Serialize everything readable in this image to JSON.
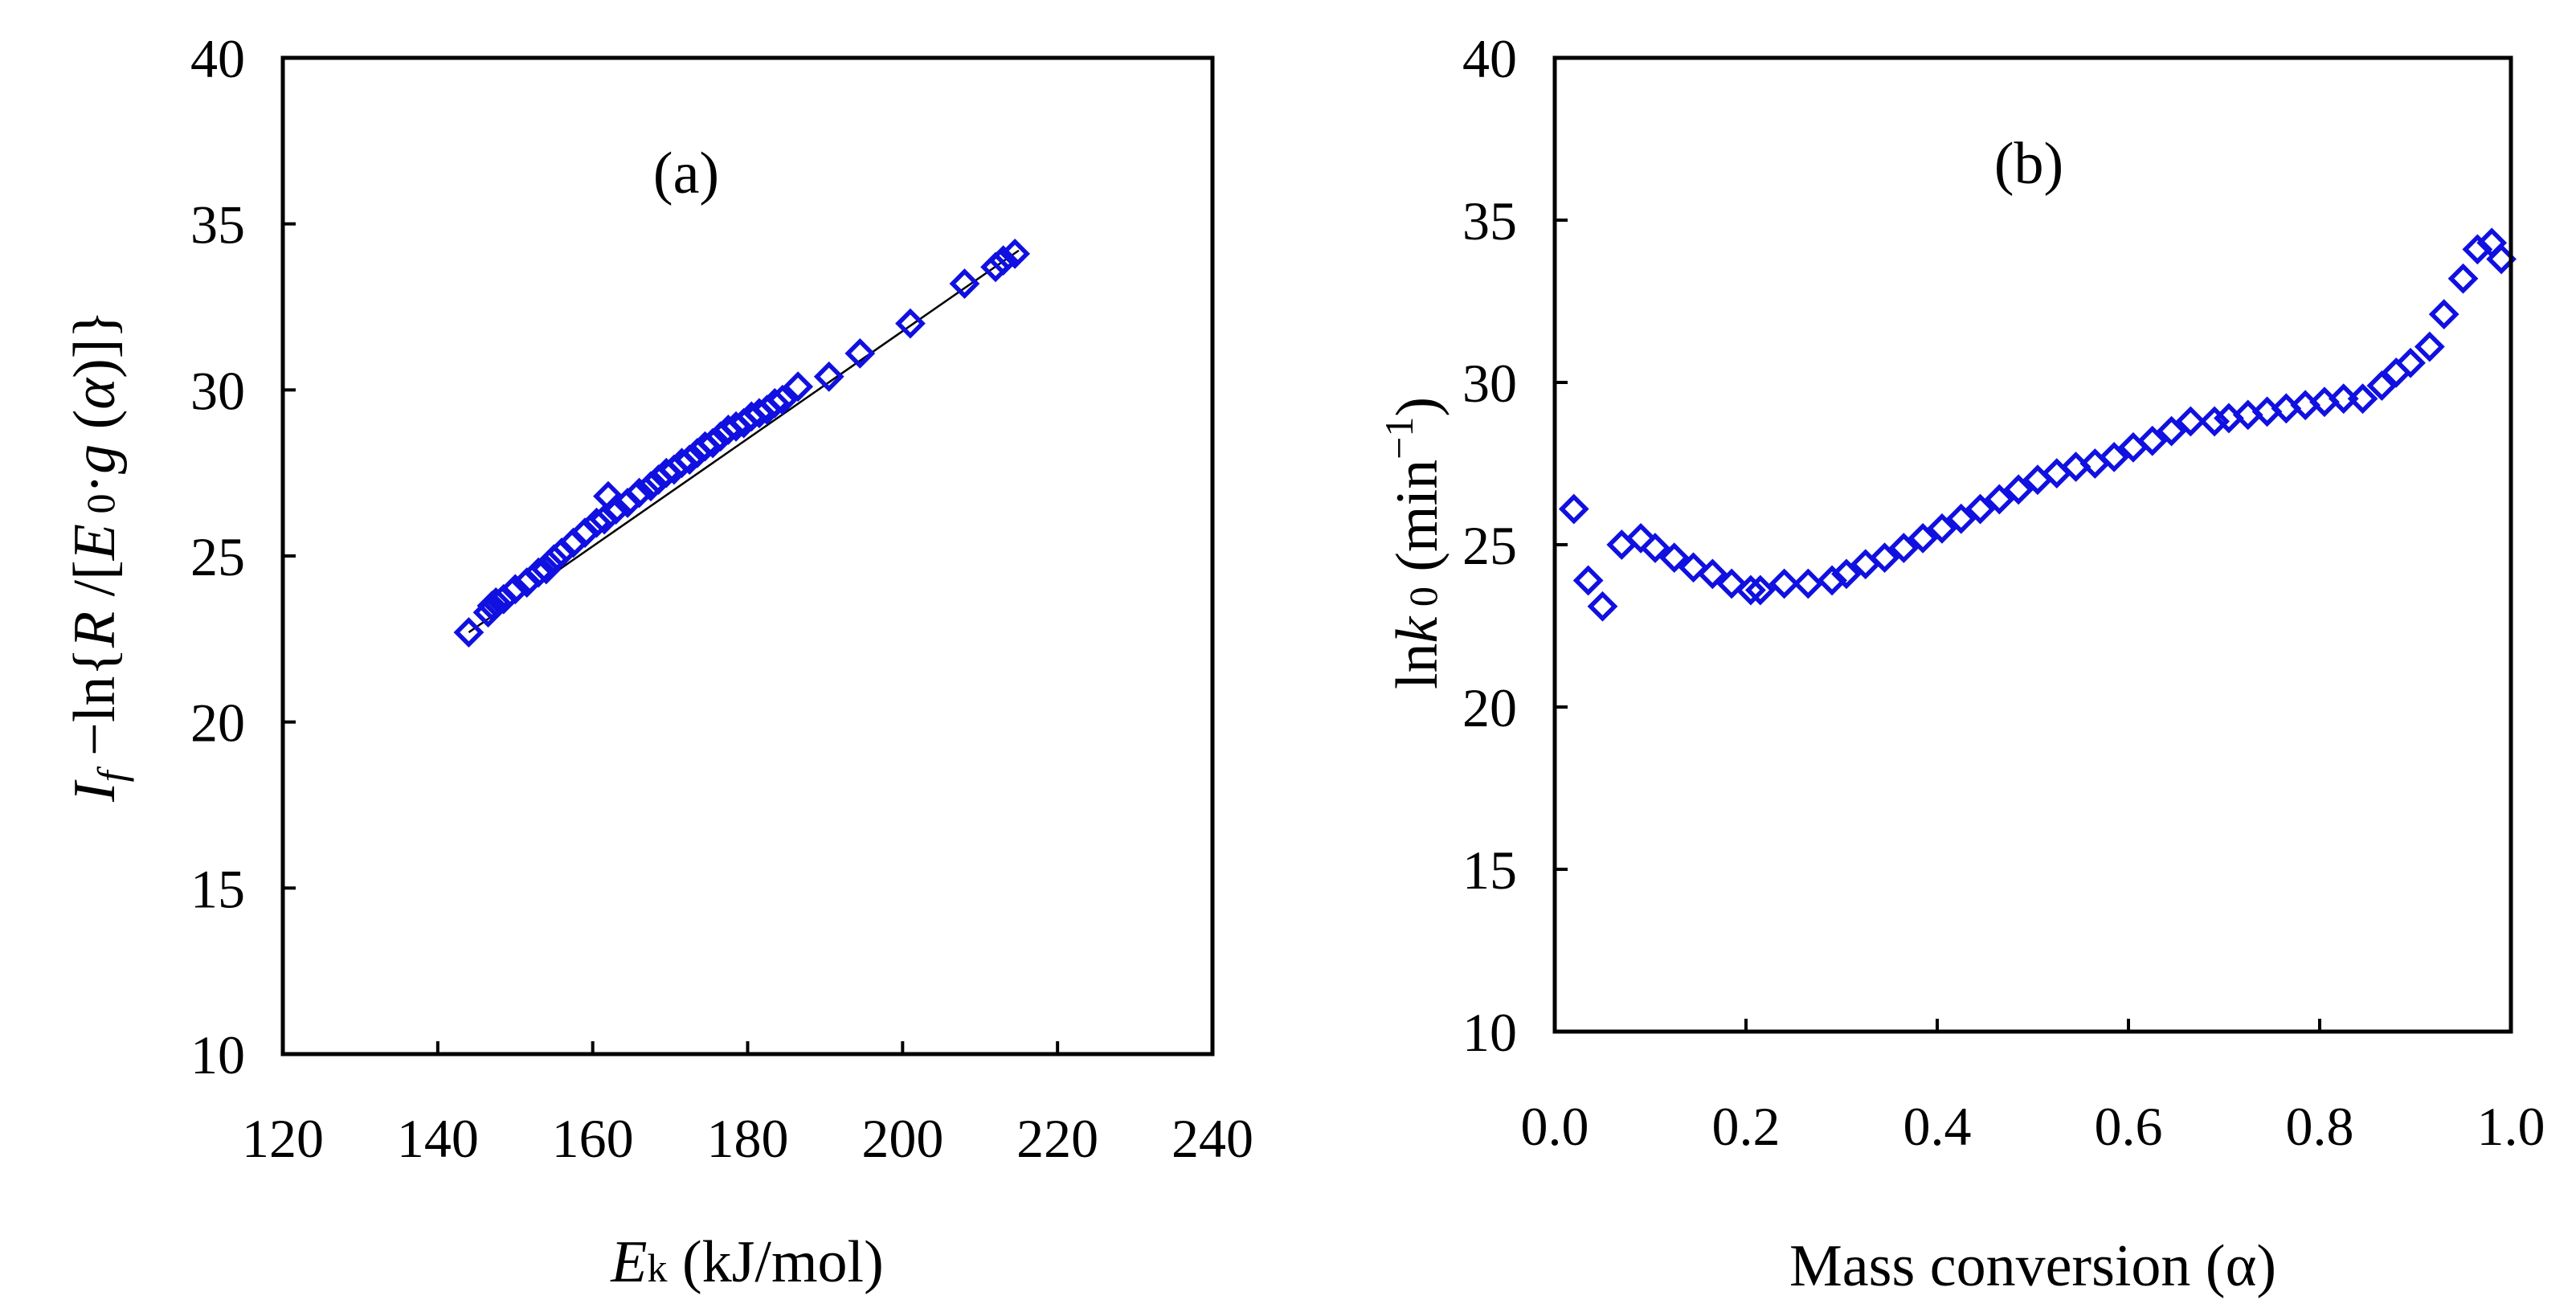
{
  "chart_data": [
    {
      "type": "scatter",
      "panel_label": "(a)",
      "xlim": [
        120,
        240
      ],
      "ylim": [
        10,
        40
      ],
      "x_ticks": [
        "120",
        "140",
        "160",
        "180",
        "200",
        "220",
        "240"
      ],
      "y_ticks": [
        "10",
        "15",
        "20",
        "25",
        "30",
        "35",
        "40"
      ],
      "xlabel": {
        "var": "E",
        "sub": "k",
        "unit": " (kJ/mol)"
      },
      "ylabel": {
        "p1": "I",
        "p1_sub": "f",
        "p2": " −ln{",
        "p3": "R",
        "p4": " /[",
        "p5": "E",
        "p5_sub": " 0",
        "p6": "·",
        "p7": "g",
        "p8": " (",
        "p9": "α",
        "p10": ")]}"
      },
      "marker": "open-diamond",
      "marker_color": "#1010e0",
      "fit_line": {
        "x": [
          144,
          215
        ],
        "y": [
          22.7,
          34.2
        ]
      },
      "points": [
        {
          "x": 144,
          "y": 22.7
        },
        {
          "x": 146.5,
          "y": 23.3
        },
        {
          "x": 147,
          "y": 23.5
        },
        {
          "x": 147.5,
          "y": 23.6
        },
        {
          "x": 148.5,
          "y": 23.7
        },
        {
          "x": 150,
          "y": 24.0
        },
        {
          "x": 151.5,
          "y": 24.2
        },
        {
          "x": 153,
          "y": 24.5
        },
        {
          "x": 154,
          "y": 24.6
        },
        {
          "x": 155,
          "y": 24.9
        },
        {
          "x": 156,
          "y": 25.1
        },
        {
          "x": 157.5,
          "y": 25.4
        },
        {
          "x": 159,
          "y": 25.7
        },
        {
          "x": 160.5,
          "y": 26.0
        },
        {
          "x": 161.5,
          "y": 26.1
        },
        {
          "x": 162,
          "y": 26.8
        },
        {
          "x": 163,
          "y": 26.4
        },
        {
          "x": 164.5,
          "y": 26.6
        },
        {
          "x": 166,
          "y": 26.9
        },
        {
          "x": 167.5,
          "y": 27.1
        },
        {
          "x": 168.5,
          "y": 27.3
        },
        {
          "x": 169.5,
          "y": 27.5
        },
        {
          "x": 170.5,
          "y": 27.6
        },
        {
          "x": 171.5,
          "y": 27.8
        },
        {
          "x": 172.5,
          "y": 27.9
        },
        {
          "x": 173.5,
          "y": 28.1
        },
        {
          "x": 174.5,
          "y": 28.3
        },
        {
          "x": 175.5,
          "y": 28.4
        },
        {
          "x": 176.5,
          "y": 28.6
        },
        {
          "x": 177.5,
          "y": 28.8
        },
        {
          "x": 178.5,
          "y": 28.9
        },
        {
          "x": 179.5,
          "y": 29.0
        },
        {
          "x": 180.5,
          "y": 29.2
        },
        {
          "x": 181.5,
          "y": 29.3
        },
        {
          "x": 182.5,
          "y": 29.4
        },
        {
          "x": 183.5,
          "y": 29.6
        },
        {
          "x": 184.5,
          "y": 29.7
        },
        {
          "x": 186.5,
          "y": 30.1
        },
        {
          "x": 190.5,
          "y": 30.4
        },
        {
          "x": 194.5,
          "y": 31.1
        },
        {
          "x": 201,
          "y": 32.0
        },
        {
          "x": 208,
          "y": 33.2
        },
        {
          "x": 212,
          "y": 33.7
        },
        {
          "x": 213,
          "y": 33.9
        },
        {
          "x": 214.5,
          "y": 34.1
        }
      ]
    },
    {
      "type": "scatter",
      "panel_label": "(b)",
      "xlim": [
        0,
        1
      ],
      "ylim": [
        10,
        40
      ],
      "x_ticks": [
        "0.0",
        "0.2",
        "0.4",
        "0.6",
        "0.8",
        "1.0"
      ],
      "y_ticks": [
        "10",
        "15",
        "20",
        "25",
        "30",
        "35",
        "40"
      ],
      "xlabel": "Mass conversion (α)",
      "ylabel": {
        "p1": "ln",
        "p2": "k",
        "p2_sub": " 0",
        "p3": " (min",
        "p3_sup": "−1",
        "p4": ")"
      },
      "marker": "open-diamond",
      "marker_color": "#1010e0",
      "points": [
        {
          "x": 0.02,
          "y": 26.1
        },
        {
          "x": 0.035,
          "y": 23.9
        },
        {
          "x": 0.05,
          "y": 23.1
        },
        {
          "x": 0.07,
          "y": 25.0
        },
        {
          "x": 0.09,
          "y": 25.2
        },
        {
          "x": 0.105,
          "y": 24.9
        },
        {
          "x": 0.125,
          "y": 24.6
        },
        {
          "x": 0.145,
          "y": 24.3
        },
        {
          "x": 0.165,
          "y": 24.1
        },
        {
          "x": 0.185,
          "y": 23.8
        },
        {
          "x": 0.205,
          "y": 23.6
        },
        {
          "x": 0.215,
          "y": 23.6
        },
        {
          "x": 0.24,
          "y": 23.8
        },
        {
          "x": 0.265,
          "y": 23.8
        },
        {
          "x": 0.29,
          "y": 23.9
        },
        {
          "x": 0.305,
          "y": 24.1
        },
        {
          "x": 0.325,
          "y": 24.4
        },
        {
          "x": 0.345,
          "y": 24.6
        },
        {
          "x": 0.365,
          "y": 24.9
        },
        {
          "x": 0.385,
          "y": 25.2
        },
        {
          "x": 0.405,
          "y": 25.5
        },
        {
          "x": 0.425,
          "y": 25.8
        },
        {
          "x": 0.445,
          "y": 26.1
        },
        {
          "x": 0.465,
          "y": 26.4
        },
        {
          "x": 0.485,
          "y": 26.7
        },
        {
          "x": 0.505,
          "y": 27.0
        },
        {
          "x": 0.525,
          "y": 27.2
        },
        {
          "x": 0.545,
          "y": 27.4
        },
        {
          "x": 0.565,
          "y": 27.5
        },
        {
          "x": 0.585,
          "y": 27.7
        },
        {
          "x": 0.605,
          "y": 28.0
        },
        {
          "x": 0.625,
          "y": 28.2
        },
        {
          "x": 0.645,
          "y": 28.5
        },
        {
          "x": 0.665,
          "y": 28.8
        },
        {
          "x": 0.69,
          "y": 28.8
        },
        {
          "x": 0.705,
          "y": 28.9
        },
        {
          "x": 0.725,
          "y": 29.0
        },
        {
          "x": 0.745,
          "y": 29.1
        },
        {
          "x": 0.765,
          "y": 29.2
        },
        {
          "x": 0.785,
          "y": 29.3
        },
        {
          "x": 0.805,
          "y": 29.4
        },
        {
          "x": 0.825,
          "y": 29.5
        },
        {
          "x": 0.845,
          "y": 29.5
        },
        {
          "x": 0.865,
          "y": 29.9
        },
        {
          "x": 0.88,
          "y": 30.3
        },
        {
          "x": 0.895,
          "y": 30.6
        },
        {
          "x": 0.915,
          "y": 31.1
        },
        {
          "x": 0.93,
          "y": 32.1
        },
        {
          "x": 0.95,
          "y": 33.2
        },
        {
          "x": 0.965,
          "y": 34.1
        },
        {
          "x": 0.98,
          "y": 34.3
        },
        {
          "x": 0.99,
          "y": 33.8
        }
      ]
    }
  ]
}
